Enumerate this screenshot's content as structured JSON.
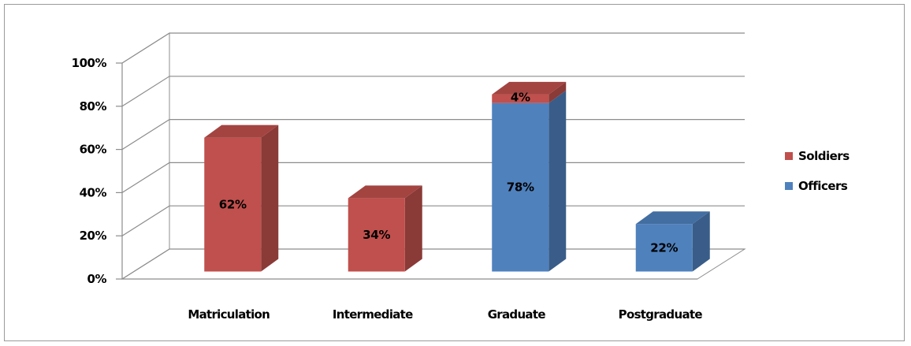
{
  "chart_data": {
    "type": "bar",
    "stacked": true,
    "three_d": true,
    "categories": [
      "Matriculation",
      "Intermediate",
      "Graduate",
      "Postgraduate"
    ],
    "series": [
      {
        "name": "Officers",
        "color": "#4f81bd",
        "values": [
          0,
          0,
          78,
          22
        ]
      },
      {
        "name": "Soldiers",
        "color": "#c0504d",
        "values": [
          62,
          34,
          4,
          0
        ]
      }
    ],
    "data_labels": [
      {
        "category": "Matriculation",
        "series": "Soldiers",
        "text": "62%"
      },
      {
        "category": "Intermediate",
        "series": "Soldiers",
        "text": "34%"
      },
      {
        "category": "Graduate",
        "series": "Officers",
        "text": "78%"
      },
      {
        "category": "Graduate",
        "series": "Soldiers",
        "text": "4%"
      },
      {
        "category": "Postgraduate",
        "series": "Officers",
        "text": "22%"
      }
    ],
    "y_ticks": [
      "0%",
      "20%",
      "40%",
      "60%",
      "80%",
      "100%"
    ],
    "ylim": [
      0,
      100
    ],
    "grid": true,
    "legend": {
      "position": "right",
      "entries": [
        "Soldiers",
        "Officers"
      ]
    },
    "title": "",
    "xlabel": "",
    "ylabel": ""
  }
}
